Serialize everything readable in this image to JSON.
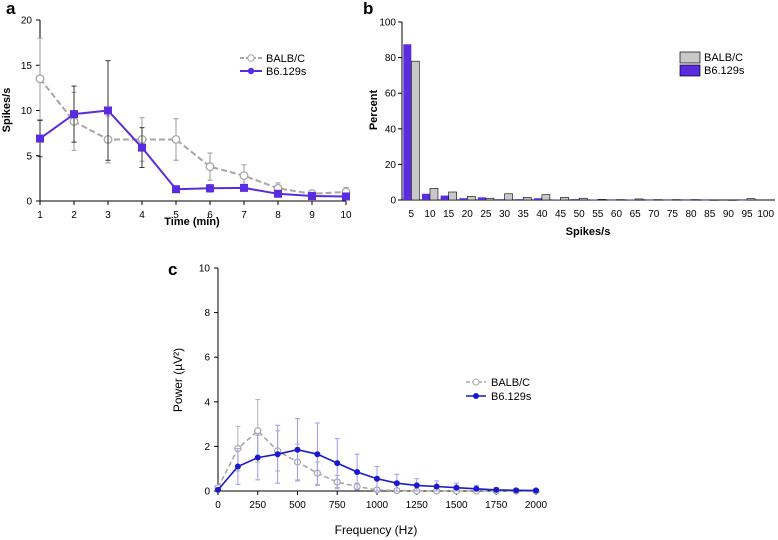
{
  "chart_data": [
    {
      "panel": "a",
      "type": "line",
      "xlabel": "Time (min)",
      "ylabel": "Spikes/s",
      "xlim": [
        1,
        10
      ],
      "ylim": [
        0,
        20
      ],
      "x_ticks": [
        "1",
        "2",
        "3",
        "4",
        "5",
        "6",
        "7",
        "8",
        "9",
        "10"
      ],
      "y_ticks": [
        "0",
        "5",
        "10",
        "15",
        "20"
      ],
      "x": [
        1,
        2,
        3,
        4,
        5,
        6,
        7,
        8,
        9,
        10
      ],
      "series": [
        {
          "name": "BALB/C",
          "color": "#a6a6a6",
          "style": "dashed",
          "marker": "open-circle",
          "values": [
            13.5,
            8.8,
            6.8,
            6.8,
            6.8,
            3.8,
            2.8,
            1.4,
            0.8,
            1.0
          ],
          "errors": [
            4.5,
            3.2,
            2.6,
            2.4,
            2.3,
            1.5,
            1.2,
            0.6,
            0.4,
            0.5
          ]
        },
        {
          "name": "B6.129s",
          "color": "#5b2be0",
          "style": "solid",
          "marker": "square",
          "values": [
            6.9,
            9.6,
            10.0,
            5.9,
            1.3,
            1.4,
            1.45,
            0.8,
            0.55,
            0.5
          ],
          "errors": [
            2.0,
            3.1,
            5.5,
            2.2,
            0.3,
            0.4,
            0.3,
            0.3,
            0.2,
            0.2
          ]
        }
      ]
    },
    {
      "panel": "b",
      "type": "bar",
      "xlabel": "Spikes/s",
      "ylabel": "Percent",
      "ylim": [
        0,
        100
      ],
      "y_ticks": [
        "0",
        "20",
        "40",
        "60",
        "80",
        "100"
      ],
      "categories": [
        "5",
        "10",
        "15",
        "20",
        "25",
        "30",
        "35",
        "40",
        "45",
        "50",
        "55",
        "60",
        "65",
        "70",
        "75",
        "80",
        "85",
        "90",
        "95",
        "100"
      ],
      "series": [
        {
          "name": "BALB/C",
          "color": "#c8c8c8",
          "values": [
            78,
            6.5,
            4.5,
            2,
            1,
            3.5,
            1.5,
            3,
            1.5,
            1,
            0.3,
            0.2,
            0.6,
            0.2,
            0.2,
            0.2,
            0.1,
            0.1,
            0.8,
            0
          ]
        },
        {
          "name": "B6.129s",
          "color": "#5b2be0",
          "values": [
            87.5,
            3.5,
            2.5,
            1,
            1.5,
            0.5,
            0.5,
            1,
            0.3,
            0.5,
            0.2,
            0.1,
            0.2,
            0.1,
            0.1,
            0.1,
            0.1,
            0,
            0.1,
            0
          ]
        }
      ]
    },
    {
      "panel": "c",
      "type": "line",
      "xlabel": "Frequency (Hz)",
      "ylabel": "Power (µV²)",
      "xlim": [
        0,
        2000
      ],
      "ylim": [
        0,
        10
      ],
      "x_ticks": [
        "0",
        "250",
        "500",
        "750",
        "1000",
        "1250",
        "1500",
        "1750",
        "2000"
      ],
      "y_ticks": [
        "0",
        "2",
        "4",
        "6",
        "8",
        "10"
      ],
      "x": [
        0,
        125,
        250,
        375,
        500,
        625,
        750,
        875,
        1000,
        1125,
        1250,
        1375,
        1500,
        1625,
        1750,
        1875,
        2000
      ],
      "series": [
        {
          "name": "BALB/C",
          "color": "#a6a6a6",
          "style": "dashed",
          "marker": "open-circle",
          "values": [
            0.15,
            1.9,
            2.7,
            1.8,
            1.3,
            0.8,
            0.4,
            0.2,
            0.05,
            0.02,
            0,
            0,
            0,
            0,
            0,
            0,
            0
          ],
          "errors": [
            0.1,
            1.0,
            1.4,
            0.9,
            0.8,
            0.5,
            0.3,
            0.15,
            0.1,
            0.05,
            0,
            0,
            0,
            0,
            0,
            0,
            0
          ]
        },
        {
          "name": "B6.129s",
          "color": "#1a1acc",
          "style": "solid",
          "marker": "filled-circle",
          "values": [
            0.05,
            1.1,
            1.5,
            1.65,
            1.85,
            1.65,
            1.25,
            0.85,
            0.55,
            0.35,
            0.25,
            0.2,
            0.15,
            0.1,
            0.05,
            0.03,
            0.02
          ],
          "errors": [
            0.05,
            0.8,
            1.0,
            1.3,
            1.4,
            1.4,
            1.1,
            0.8,
            0.55,
            0.4,
            0.3,
            0.25,
            0.2,
            0.15,
            0.1,
            0.08,
            0.05
          ]
        }
      ]
    }
  ],
  "labels": {
    "a": "a",
    "b": "b",
    "c": "c"
  }
}
